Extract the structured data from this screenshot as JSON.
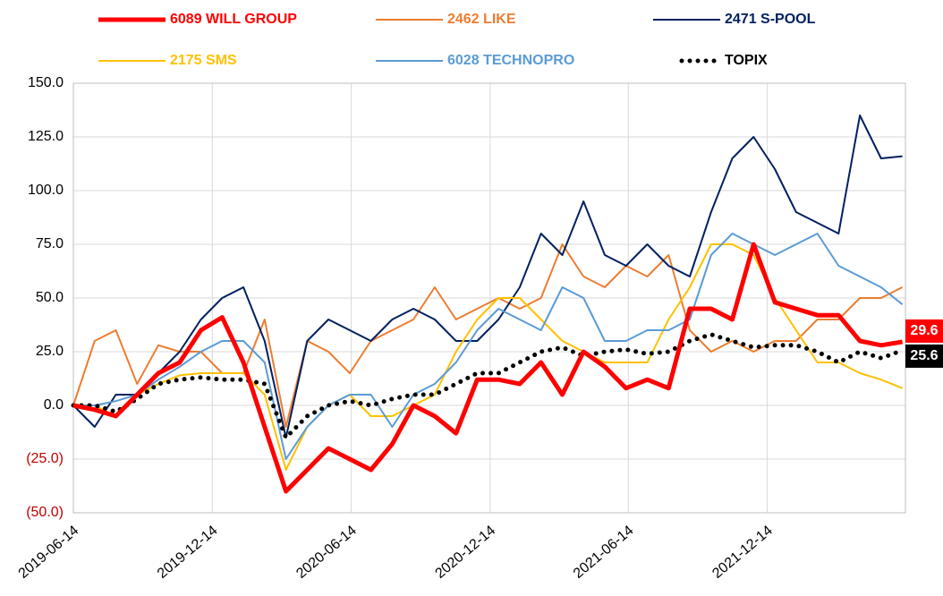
{
  "chart_data": {
    "type": "line",
    "x": [
      "2019-06-14",
      "2019-07-12",
      "2019-08-09",
      "2019-09-06",
      "2019-10-04",
      "2019-11-01",
      "2019-11-29",
      "2019-12-27",
      "2020-01-24",
      "2020-02-21",
      "2020-03-20",
      "2020-04-17",
      "2020-05-15",
      "2020-06-12",
      "2020-07-10",
      "2020-08-07",
      "2020-09-04",
      "2020-10-02",
      "2020-10-30",
      "2020-11-27",
      "2020-12-25",
      "2021-01-22",
      "2021-02-19",
      "2021-03-19",
      "2021-04-16",
      "2021-05-14",
      "2021-06-11",
      "2021-07-09",
      "2021-08-06",
      "2021-09-03",
      "2021-10-01",
      "2021-10-29",
      "2021-11-26",
      "2021-12-24",
      "2022-01-21",
      "2022-02-18",
      "2022-03-18",
      "2022-04-15",
      "2022-05-13",
      "2022-06-10"
    ],
    "series": [
      {
        "name": "6089 WILL GROUP",
        "color": "#ff0000",
        "highlight": true,
        "last_label": "29.6",
        "values": [
          0,
          -2,
          -5,
          5,
          15,
          20,
          35,
          41,
          20,
          -10,
          -40,
          -30,
          -20,
          -25,
          -30,
          -18,
          0,
          -5,
          -13,
          12,
          12,
          10,
          20,
          5,
          25,
          18,
          8,
          12,
          8,
          45,
          45,
          40,
          75,
          48,
          45,
          42,
          42,
          30,
          28,
          29.6
        ]
      },
      {
        "name": "2462 LIKE",
        "color": "#ed7d31",
        "values": [
          0,
          30,
          35,
          10,
          28,
          25,
          25,
          15,
          15,
          40,
          -10,
          30,
          25,
          15,
          30,
          35,
          40,
          55,
          40,
          45,
          50,
          45,
          50,
          75,
          60,
          55,
          65,
          60,
          70,
          35,
          25,
          30,
          25,
          30,
          30,
          40,
          40,
          50,
          50,
          55
        ]
      },
      {
        "name": "2471 S-POOL",
        "color": "#002060",
        "values": [
          0,
          -10,
          5,
          5,
          15,
          25,
          40,
          50,
          55,
          30,
          -15,
          30,
          40,
          35,
          30,
          40,
          45,
          40,
          30,
          30,
          40,
          55,
          80,
          70,
          95,
          70,
          65,
          75,
          65,
          60,
          90,
          115,
          125,
          110,
          90,
          85,
          80,
          135,
          115,
          116
        ]
      },
      {
        "name": "2175 SMS",
        "color": "#ffc000",
        "values": [
          0,
          0,
          -5,
          5,
          10,
          14,
          15,
          15,
          15,
          5,
          -30,
          -10,
          0,
          5,
          -5,
          -5,
          0,
          5,
          25,
          40,
          50,
          50,
          40,
          30,
          25,
          20,
          20,
          20,
          40,
          55,
          75,
          75,
          70,
          50,
          35,
          20,
          20,
          15,
          12,
          8
        ]
      },
      {
        "name": "6028 TECHNOPRO",
        "color": "#5b9bd5",
        "values": [
          0,
          0,
          2,
          5,
          12,
          18,
          25,
          30,
          30,
          20,
          -25,
          -10,
          0,
          5,
          5,
          -10,
          5,
          10,
          20,
          35,
          45,
          40,
          35,
          55,
          50,
          30,
          30,
          35,
          35,
          40,
          70,
          80,
          75,
          70,
          75,
          80,
          65,
          60,
          55,
          47
        ]
      },
      {
        "name": "TOPIX",
        "color": "#000000",
        "style": "dotted",
        "last_label": "25.6",
        "values": [
          0,
          0,
          -3,
          3,
          10,
          12,
          13,
          12,
          12,
          10,
          -15,
          -5,
          0,
          2,
          0,
          3,
          5,
          5,
          10,
          15,
          15,
          20,
          25,
          27,
          23,
          25,
          26,
          24,
          25,
          30,
          33,
          30,
          27,
          28,
          28,
          25,
          20,
          25,
          22,
          25.6
        ]
      }
    ],
    "xlim": [
      "2019-06-14",
      "2022-06-14"
    ],
    "xticks": [
      "2019-06-14",
      "2019-12-14",
      "2020-06-14",
      "2020-12-14",
      "2021-06-14",
      "2021-12-14"
    ],
    "ylim": [
      -50,
      150
    ],
    "yticks": [
      {
        "value": -50,
        "label": "(50.0)"
      },
      {
        "value": -25,
        "label": "(25.0)"
      },
      {
        "value": 0,
        "label": "0.0"
      },
      {
        "value": 25,
        "label": "25.0"
      },
      {
        "value": 50,
        "label": "50.0"
      },
      {
        "value": 75,
        "label": "75.0"
      },
      {
        "value": 100,
        "label": "100.0"
      },
      {
        "value": 125,
        "label": "125.0"
      },
      {
        "value": 150,
        "label": "150.0"
      }
    ],
    "grid": true,
    "legend": "top"
  }
}
